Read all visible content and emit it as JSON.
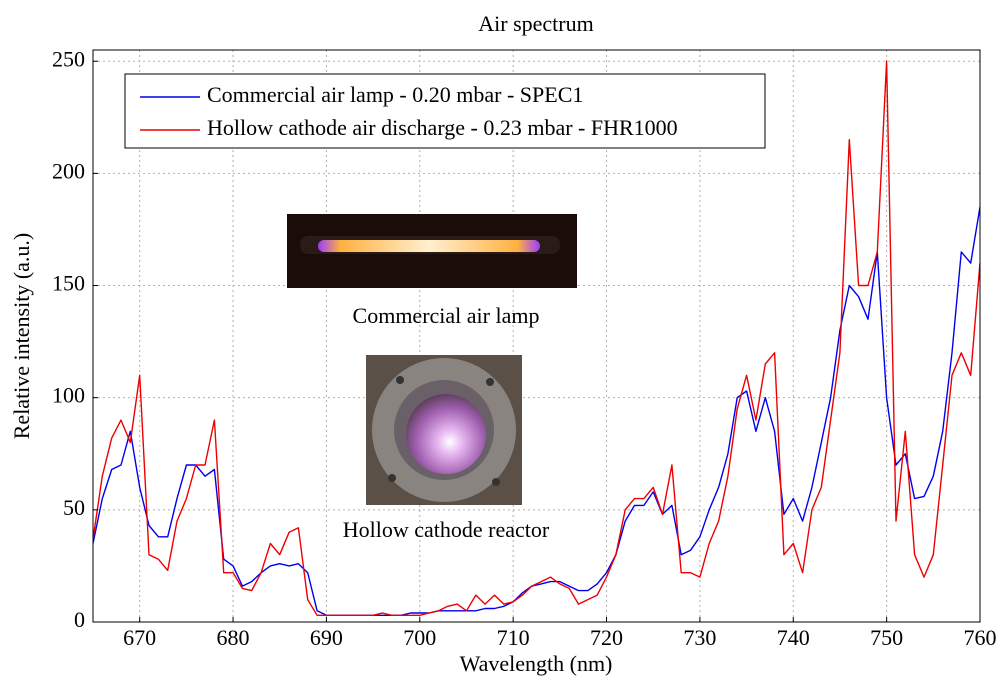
{
  "chart_data": {
    "type": "line",
    "title": "Air spectrum",
    "xlabel": "Wavelength (nm)",
    "ylabel": "Relative intensity (a.u.)",
    "x": [
      665,
      666,
      667,
      668,
      669,
      670,
      671,
      672,
      673,
      674,
      675,
      676,
      677,
      678,
      679,
      680,
      681,
      682,
      683,
      684,
      685,
      686,
      687,
      688,
      689,
      690,
      691,
      692,
      693,
      694,
      695,
      696,
      697,
      698,
      699,
      700,
      701,
      702,
      703,
      704,
      705,
      706,
      707,
      708,
      709,
      710,
      711,
      712,
      713,
      714,
      715,
      716,
      717,
      718,
      719,
      720,
      721,
      722,
      723,
      724,
      725,
      726,
      727,
      728,
      729,
      730,
      731,
      732,
      733,
      734,
      735,
      736,
      737,
      738,
      739,
      740,
      741,
      742,
      743,
      744,
      745,
      746,
      747,
      748,
      749,
      750,
      751,
      752,
      753,
      754,
      755,
      756,
      757,
      758,
      759,
      760
    ],
    "series": [
      {
        "name": "Commercial air lamp - 0.20 mbar - SPEC1",
        "color": "#0000ee",
        "values": [
          35,
          55,
          68,
          70,
          85,
          60,
          43,
          38,
          38,
          55,
          70,
          70,
          65,
          68,
          28,
          25,
          16,
          18,
          22,
          25,
          26,
          25,
          26,
          22,
          5,
          3,
          3,
          3,
          3,
          3,
          3,
          3,
          3,
          3,
          4,
          4,
          4,
          5,
          5,
          5,
          5,
          5,
          6,
          6,
          7,
          9,
          13,
          16,
          17,
          18,
          18,
          16,
          14,
          14,
          17,
          22,
          30,
          45,
          52,
          52,
          58,
          48,
          52,
          30,
          32,
          38,
          50,
          60,
          75,
          100,
          103,
          85,
          100,
          85,
          48,
          55,
          45,
          60,
          80,
          100,
          130,
          150,
          145,
          135,
          165,
          100,
          70,
          75,
          55,
          56,
          65,
          85,
          120,
          165,
          160,
          185
        ]
      },
      {
        "name": "Hollow cathode air discharge - 0.23 mbar - FHR1000",
        "color": "#ee0000",
        "values": [
          37,
          65,
          82,
          90,
          80,
          110,
          30,
          28,
          23,
          45,
          55,
          70,
          70,
          90,
          22,
          22,
          15,
          14,
          22,
          35,
          30,
          40,
          42,
          10,
          3,
          3,
          3,
          3,
          3,
          3,
          3,
          4,
          3,
          3,
          3,
          3,
          4,
          5,
          7,
          8,
          5,
          12,
          8,
          12,
          8,
          9,
          12,
          16,
          18,
          20,
          17,
          15,
          8,
          10,
          12,
          20,
          30,
          50,
          55,
          55,
          60,
          48,
          70,
          22,
          22,
          20,
          35,
          45,
          65,
          95,
          110,
          90,
          115,
          120,
          30,
          35,
          22,
          50,
          60,
          90,
          120,
          215,
          150,
          150,
          165,
          250,
          45,
          85,
          30,
          20,
          30,
          70,
          110,
          120,
          110,
          160
        ]
      }
    ],
    "xlim": [
      665,
      760
    ],
    "ylim": [
      0,
      255
    ],
    "xticks": [
      670,
      680,
      690,
      700,
      710,
      720,
      730,
      740,
      750,
      760
    ],
    "yticks": [
      0,
      50,
      100,
      150,
      200,
      250
    ],
    "grid": true,
    "legend": "upper left",
    "annotations": [
      "Commercial air lamp",
      "Hollow cathode reactor"
    ]
  }
}
